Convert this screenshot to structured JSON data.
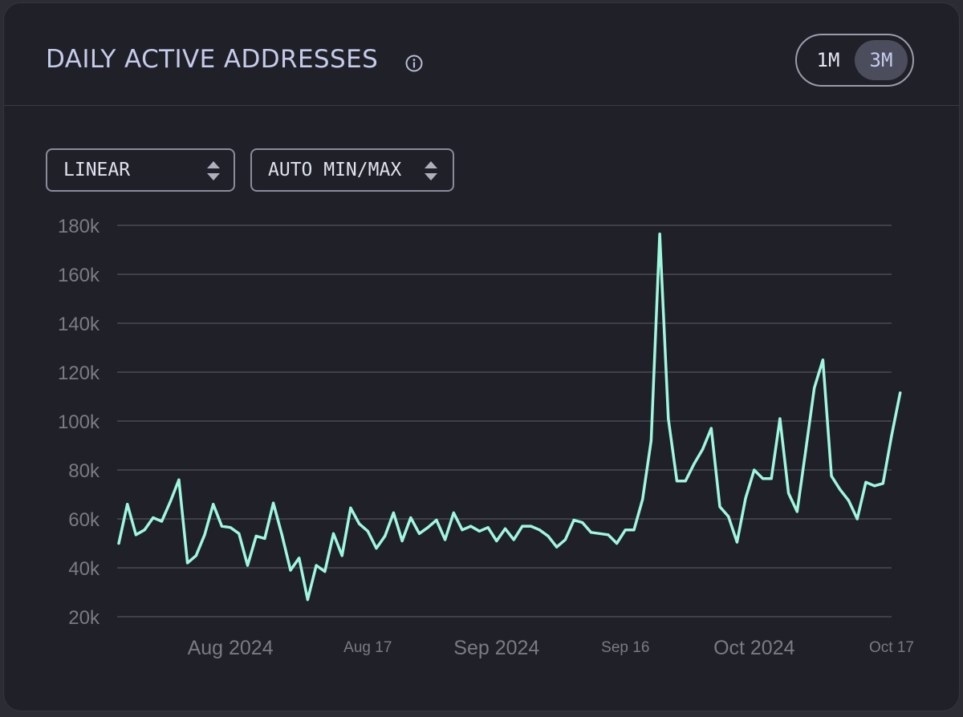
{
  "header": {
    "title": "DAILY ACTIVE ADDRESSES",
    "info_icon": "info-circle-icon",
    "range_options": [
      {
        "label": "1M",
        "selected": false
      },
      {
        "label": "3M",
        "selected": true
      }
    ]
  },
  "controls": {
    "scale_select": {
      "value": "LINEAR",
      "icon": "sort-arrows-icon"
    },
    "range_select": {
      "value": "AUTO MIN/MAX",
      "icon": "sort-arrows-icon"
    }
  },
  "colors": {
    "line": "#9ff7df",
    "grid": "#4a4b53",
    "tick_text": "#7b7c82",
    "background": "#1f2028"
  },
  "chart_data": {
    "type": "line",
    "title": "DAILY ACTIVE ADDRESSES",
    "xlabel": "",
    "ylabel": "",
    "ylim": [
      20000,
      180000
    ],
    "xlim": [
      "2024-07-19",
      "2024-10-17"
    ],
    "grid": true,
    "y_ticks": [
      {
        "value": 20000,
        "label": "20k"
      },
      {
        "value": 40000,
        "label": "40k"
      },
      {
        "value": 60000,
        "label": "60k"
      },
      {
        "value": 80000,
        "label": "80k"
      },
      {
        "value": 100000,
        "label": "100k"
      },
      {
        "value": 120000,
        "label": "120k"
      },
      {
        "value": 140000,
        "label": "140k"
      },
      {
        "value": 160000,
        "label": "160k"
      },
      {
        "value": 180000,
        "label": "180k"
      }
    ],
    "x_ticks": [
      {
        "day": 13,
        "label": "Aug 2024",
        "major": true
      },
      {
        "day": 29,
        "label": "Aug 17",
        "major": false
      },
      {
        "day": 44,
        "label": "Sep 2024",
        "major": true
      },
      {
        "day": 59,
        "label": "Sep 16",
        "major": false
      },
      {
        "day": 74,
        "label": "Oct 2024",
        "major": true
      },
      {
        "day": 90,
        "label": "Oct 17",
        "major": false
      }
    ],
    "series": [
      {
        "name": "Daily active addresses",
        "start_date": "2024-07-19",
        "values": [
          50000,
          66000,
          53500,
          55500,
          60500,
          59000,
          67000,
          76000,
          42000,
          45000,
          53500,
          66000,
          57000,
          56500,
          54000,
          41000,
          53000,
          52000,
          66500,
          53500,
          39000,
          44000,
          27000,
          41000,
          38500,
          54000,
          45000,
          64500,
          58000,
          55000,
          48000,
          53000,
          62500,
          51000,
          60500,
          54000,
          56500,
          59500,
          51500,
          62500,
          55500,
          57000,
          55000,
          56500,
          51000,
          56000,
          51500,
          57000,
          57000,
          55500,
          53000,
          48500,
          51500,
          59500,
          58500,
          54500,
          54000,
          53500,
          50000,
          55500,
          55500,
          68000,
          92000,
          176500,
          101000,
          75500,
          75500,
          82500,
          88500,
          97000,
          65000,
          61000,
          50500,
          68500,
          80000,
          76500,
          76500,
          101000,
          70500,
          63000,
          88000,
          113500,
          125000,
          77500,
          72000,
          67500,
          60000,
          75000,
          73500,
          74500,
          94000,
          111500
        ]
      }
    ]
  }
}
